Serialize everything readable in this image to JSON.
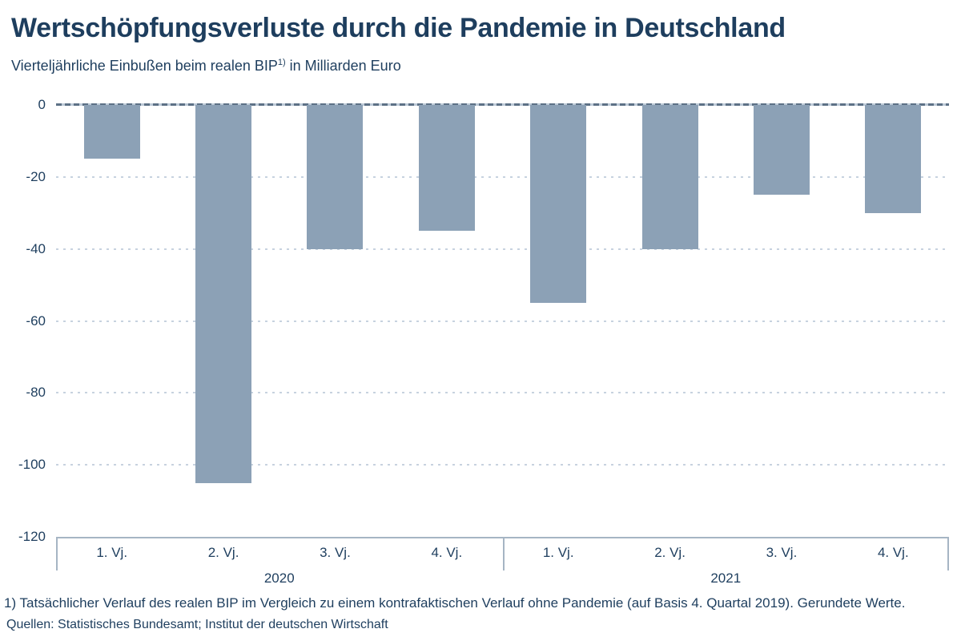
{
  "header": {
    "title": "Wertschöpfungsverluste durch die Pandemie in Deutschland",
    "subtitle_pre": "Vierteljährliche Einbußen beim realen BIP",
    "subtitle_sup": "1)",
    "subtitle_post": " in Milliarden Euro"
  },
  "chart_data": {
    "type": "bar",
    "title": "Wertschöpfungsverluste durch die Pandemie in Deutschland",
    "subtitle": "Vierteljährliche Einbußen beim realen BIP 1) in Milliarden Euro",
    "categories": [
      "1. Vj.",
      "2. Vj.",
      "3. Vj.",
      "4. Vj.",
      "1. Vj.",
      "2. Vj.",
      "3. Vj.",
      "4. Vj."
    ],
    "groups": [
      {
        "label": "2020",
        "span": 4
      },
      {
        "label": "2021",
        "span": 4
      }
    ],
    "values": [
      -15,
      -105,
      -40,
      -35,
      -55,
      -40,
      -25,
      -30
    ],
    "ylabel": "Milliarden Euro",
    "yticks": [
      0,
      -20,
      -40,
      -60,
      -80,
      -100,
      -120
    ],
    "ylim": [
      -120,
      0
    ],
    "grid": "dotted horizontal gridlines, dashed zero line",
    "legend_position": "none",
    "bar_color": "#8ca1b6"
  },
  "footnote": "1) Tatsächlicher Verlauf des realen BIP im Vergleich zu einem kontrafaktischen Verlauf ohne Pandemie (auf Basis 4. Quartal 2019). Gerundete Werte.",
  "source": "Quellen: Statistisches Bundesamt; Institut der deutschen Wirtschaft",
  "colors": {
    "text": "#1e3e5e",
    "bar": "#8ca1b6",
    "zero_line": "#5d7186",
    "gridline": "#c7d2df",
    "axis": "#a6b5c4",
    "background": "#ffffff"
  }
}
